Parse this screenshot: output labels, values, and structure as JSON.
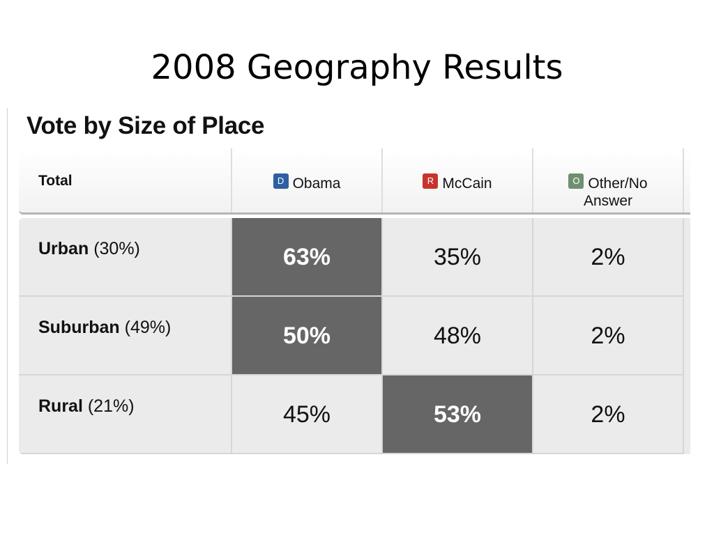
{
  "slide": {
    "title": "2008 Geography Results"
  },
  "panel": {
    "title": "Vote by Size of Place"
  },
  "colors": {
    "democrat_badge": "#2e5fa3",
    "republican_badge": "#c8332c",
    "other_badge": "#6f8f72",
    "winner_cell": "#666666",
    "table_bg": "#ebebeb"
  },
  "header": {
    "total_label": "Total",
    "candidates": [
      {
        "badge": "D",
        "name": "Obama"
      },
      {
        "badge": "R",
        "name": "McCain"
      },
      {
        "badge": "O",
        "name_line1": "Other/No",
        "name_line2": "Answer"
      }
    ]
  },
  "chart_data": {
    "type": "table",
    "title": "Vote by Size of Place",
    "columns": [
      "Total",
      "Obama",
      "McCain",
      "Other/No Answer"
    ],
    "rows": [
      {
        "category": "Urban",
        "share": "(30%)",
        "values": [
          "63%",
          "35%",
          "2%"
        ],
        "winner_index": 0
      },
      {
        "category": "Suburban",
        "share": "(49%)",
        "values": [
          "50%",
          "48%",
          "2%"
        ],
        "winner_index": 0
      },
      {
        "category": "Rural",
        "share": "(21%)",
        "values": [
          "45%",
          "53%",
          "2%"
        ],
        "winner_index": 1
      }
    ]
  }
}
